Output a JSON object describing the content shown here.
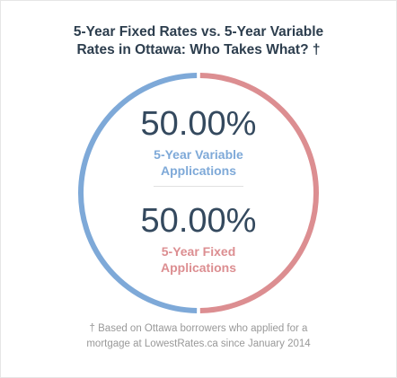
{
  "title": {
    "line1": "5-Year Fixed Rates vs. 5-Year Variable",
    "line2": "Rates in Ottawa: Who Takes What? †"
  },
  "colors": {
    "variable": "#7ea9d8",
    "fixed": "#dc8e91",
    "text": "#34495e",
    "note": "#999999"
  },
  "chart_data": {
    "type": "pie",
    "style": "ring",
    "title": "5-Year Fixed Rates vs. 5-Year Variable Rates in Ottawa: Who Takes What? †",
    "slices": [
      {
        "name": "5-Year Variable Applications",
        "value": 50.0,
        "label": "50.00%",
        "color": "#7ea9d8"
      },
      {
        "name": "5-Year Fixed Applications",
        "value": 50.0,
        "label": "50.00%",
        "color": "#dc8e91"
      }
    ]
  },
  "stats": [
    {
      "percent": "50.00%",
      "label_line1": "5-Year Variable",
      "label_line2": "Applications"
    },
    {
      "percent": "50.00%",
      "label_line1": "5-Year Fixed",
      "label_line2": "Applications"
    }
  ],
  "footnote": {
    "line1": "† Based on Ottawa borrowers who applied for a",
    "line2": "mortgage at LowestRates.ca since January 2014"
  }
}
